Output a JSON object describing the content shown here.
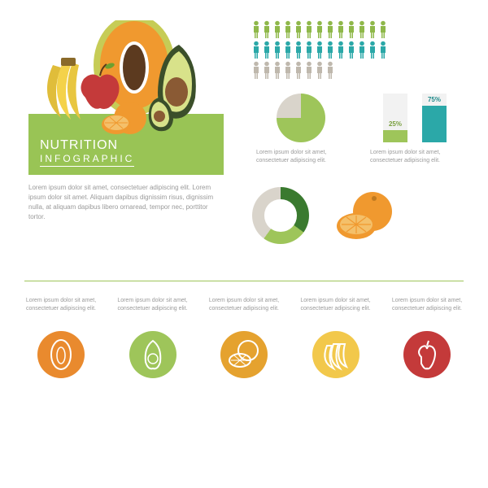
{
  "hero": {
    "title": "NUTRITION",
    "subtitle": "INFOGRAPHIC",
    "body": "Lorem ipsum dolor sit amet, consectetuer adipiscing elit. Lorem ipsum dolor sit amet. Aliquam dapibus dignissim risus, dignissim nulla, at aliquam dapibus libero ornaread, tempor nec, porttitor tortor.",
    "box_color": "#99c455",
    "fruit_colors": {
      "papaya_skin": "#c6cc56",
      "papaya_flesh": "#f0992f",
      "papaya_seed": "#5c3a1f",
      "avocado_skin": "#3b4f2a",
      "avocado_flesh": "#d8e28a",
      "avocado_pit": "#8a5a34",
      "banana": "#f4d24a",
      "apple": "#c43a3a",
      "apple_leaf": "#6ea02f",
      "orange_skin": "#f0992f",
      "orange_flesh": "#f4c06a"
    }
  },
  "people": {
    "rows": [
      {
        "color": "#8fb84a",
        "count": 13
      },
      {
        "color": "#2ba8a8",
        "count": 13
      },
      {
        "color": "#bfb8ad",
        "count": 8
      }
    ]
  },
  "pie1": {
    "type": "pie",
    "slices": [
      {
        "value": 75,
        "color": "#9ec55a"
      },
      {
        "value": 25,
        "color": "#d9d4cb"
      }
    ],
    "caption": "Lorem ipsum dolor sit amet, consectetuer adipiscing elit."
  },
  "bars": {
    "type": "bar",
    "items": [
      {
        "label": "25%",
        "pct": 25,
        "color": "#9ec55a",
        "label_color": "#7aa03f"
      },
      {
        "label": "75%",
        "pct": 75,
        "color": "#2ba8a8",
        "label_color": "#1f8a8a"
      }
    ],
    "bg": "#f2f2f2",
    "caption": "Lorem ipsum dolor sit amet, consectetuer adipiscing elit."
  },
  "donut": {
    "type": "donut",
    "slices": [
      {
        "value": 35,
        "color": "#3a7a2f"
      },
      {
        "value": 25,
        "color": "#9ec55a"
      },
      {
        "value": 40,
        "color": "#d9d4cb"
      }
    ],
    "hole": "#ffffff"
  },
  "orange_icon": {
    "skin": "#f0992f",
    "flesh": "#f4c06a"
  },
  "divider_color": "#9ec55a",
  "bottom_icons": [
    {
      "name": "papaya-icon",
      "bg": "#e98a2e",
      "caption": "Lorem ipsum dolor sit amet, consectetuer adipiscing elit."
    },
    {
      "name": "avocado-icon",
      "bg": "#9ec55a",
      "caption": "Lorem ipsum dolor sit amet, consectetuer adipiscing elit."
    },
    {
      "name": "orange-icon",
      "bg": "#e5a22f",
      "caption": "Lorem ipsum dolor sit amet, consectetuer adipiscing elit."
    },
    {
      "name": "banana-icon",
      "bg": "#f2c84b",
      "caption": "Lorem ipsum dolor sit amet, consectetuer adipiscing elit."
    },
    {
      "name": "apple-icon",
      "bg": "#c43a3a",
      "caption": "Lorem ipsum dolor sit amet, consectetuer adipiscing elit."
    }
  ]
}
